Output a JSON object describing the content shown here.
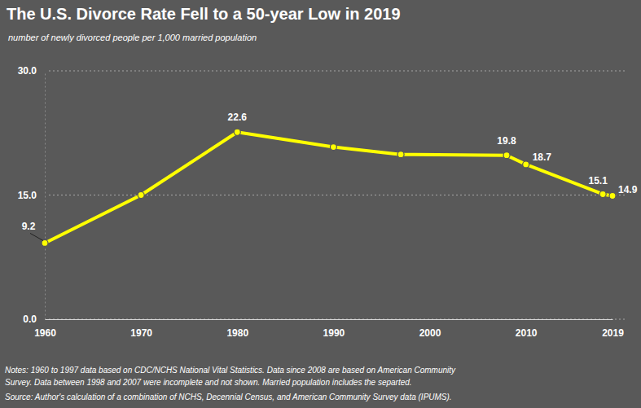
{
  "chart_data": {
    "type": "line",
    "title": "The U.S. Divorce Rate Fell to a 50-year Low in 2019",
    "subtitle": "number of newly divorced people per 1,000 married population",
    "x": [
      1960,
      1970,
      1980,
      1990,
      1997,
      2008,
      2010,
      2018,
      2019
    ],
    "values": [
      9.2,
      15.0,
      22.6,
      20.8,
      19.9,
      19.8,
      18.7,
      15.1,
      14.9
    ],
    "value_labels": [
      "9.2",
      null,
      "22.6",
      null,
      null,
      "19.8",
      "18.7",
      "15.1",
      "14.9"
    ],
    "data_labels": true,
    "color": "#ffff00",
    "marker": "circle",
    "xlim": [
      1960,
      2019
    ],
    "xticks": [
      1960,
      1970,
      1980,
      1990,
      2000,
      2010,
      2019
    ],
    "ylim": [
      0,
      30
    ],
    "yticks": [
      {
        "value": 0,
        "label": "0.0"
      },
      {
        "value": 15,
        "label": "15.0"
      },
      {
        "value": 30,
        "label": "30.0"
      }
    ],
    "grid": true,
    "notes": [
      "Notes: 1960 to 1997 data based on CDC/NCHS National Vital Statistics. Data since 2008 are based on American Community",
      "Survey. Data between 1998 and 2007 were incomplete and not shown. Married population includes the separted.",
      "Source: Author's calculation of a combination of NCHS, Decennial Census, and American Community Survey data (IPUMS)."
    ]
  }
}
